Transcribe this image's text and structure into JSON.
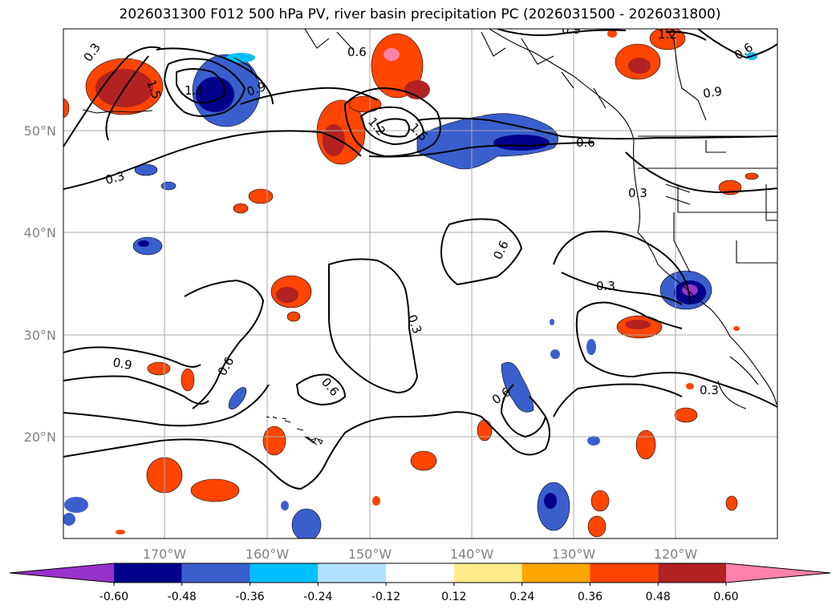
{
  "title": "2026031300 F012 500 hPa PV, river basin precipitation PC (2026031500 - 2026031800)",
  "map": {
    "lon_ticks": [
      "170°W",
      "160°W",
      "150°W",
      "140°W",
      "130°W",
      "120°W"
    ],
    "lat_ticks": [
      "50°N",
      "40°N",
      "30°N",
      "20°N"
    ]
  },
  "contour_labels": [
    "0.3",
    "0.6",
    "0.9",
    "1.2",
    "1.5",
    "1.8"
  ],
  "colorbar": {
    "levels": [
      "-0.60",
      "-0.48",
      "-0.36",
      "-0.24",
      "-0.12",
      "0.12",
      "0.24",
      "0.36",
      "0.48",
      "0.60"
    ],
    "colors": [
      "#9932cc",
      "#00008b",
      "#3a5fcd",
      "#00bfff",
      "#b0e2ff",
      "#ffffff",
      "#ffec8b",
      "#ffa500",
      "#ff4500",
      "#b22222",
      "#ff82ab"
    ]
  }
}
